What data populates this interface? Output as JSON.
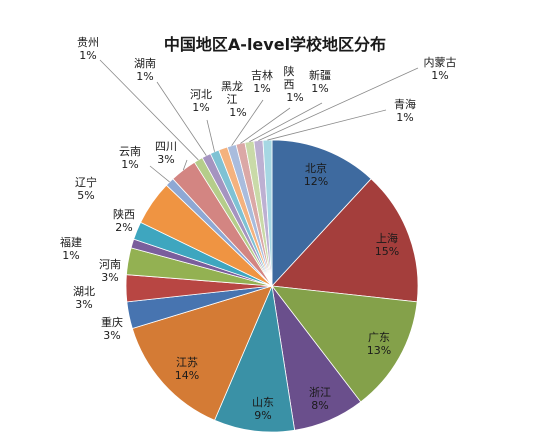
{
  "chart_data": {
    "type": "pie",
    "title": "中国地区A-level学校地区分布",
    "start_angle_deg": 0,
    "direction": "clockwise",
    "slices": [
      {
        "label": "北京",
        "pct_label": "12%",
        "value": 12,
        "color": "#3e6a9f",
        "label_pos": "inside"
      },
      {
        "label": "上海",
        "pct_label": "15%",
        "value": 15,
        "color": "#a43e3c",
        "label_pos": "inside"
      },
      {
        "label": "广东",
        "pct_label": "13%",
        "value": 13,
        "color": "#84a14a",
        "label_pos": "inside"
      },
      {
        "label": "浙江",
        "pct_label": "8%",
        "value": 8,
        "color": "#6a4f8c",
        "label_pos": "inside"
      },
      {
        "label": "山东",
        "pct_label": "9%",
        "value": 9,
        "color": "#3a91a6",
        "label_pos": "inside"
      },
      {
        "label": "江苏",
        "pct_label": "14%",
        "value": 14,
        "color": "#d47b35",
        "label_pos": "inside"
      },
      {
        "label": "重庆",
        "pct_label": "3%",
        "value": 3,
        "color": "#4774b0",
        "label_pos": "outside"
      },
      {
        "label": "湖北",
        "pct_label": "3%",
        "value": 3,
        "color": "#b84643",
        "label_pos": "outside"
      },
      {
        "label": "河南",
        "pct_label": "3%",
        "value": 3,
        "color": "#93b152",
        "label_pos": "outside"
      },
      {
        "label": "福建",
        "pct_label": "1%",
        "value": 1,
        "color": "#7a5e9c",
        "label_pos": "outside"
      },
      {
        "label": "陕西",
        "pct_label": "2%",
        "value": 2,
        "color": "#3ea6bf",
        "label_pos": "outside"
      },
      {
        "label": "辽宁",
        "pct_label": "5%",
        "value": 5,
        "color": "#ef9442",
        "label_pos": "outside"
      },
      {
        "label": "云南",
        "pct_label": "1%",
        "value": 1,
        "color": "#8ea8d4",
        "label_pos": "outside"
      },
      {
        "label": "四川",
        "pct_label": "3%",
        "value": 3,
        "color": "#d38582",
        "label_pos": "outside"
      },
      {
        "label": "贵州",
        "pct_label": "1%",
        "value": 1,
        "color": "#b5cd8a",
        "label_pos": "outside"
      },
      {
        "label": "湖南",
        "pct_label": "1%",
        "value": 1,
        "color": "#a594c0",
        "label_pos": "outside"
      },
      {
        "label": "河北",
        "pct_label": "1%",
        "value": 1,
        "color": "#7fc2d4",
        "label_pos": "outside"
      },
      {
        "label": "黑龙江",
        "pct_label": "1%",
        "value": 1,
        "color": "#f4b27e",
        "label_pos": "outside"
      },
      {
        "label": "吉林",
        "pct_label": "1%",
        "value": 1,
        "color": "#a9bcdd",
        "label_pos": "outside"
      },
      {
        "label": "陕西",
        "pct_label": "1%",
        "value": 1,
        "color": "#dba8a6",
        "label_pos": "outside"
      },
      {
        "label": "新疆",
        "pct_label": "1%",
        "value": 1,
        "color": "#c9daa8",
        "label_pos": "outside"
      },
      {
        "label": "内蒙古",
        "pct_label": "1%",
        "value": 1,
        "color": "#bdb0d2",
        "label_pos": "outside"
      },
      {
        "label": "青海",
        "pct_label": "1%",
        "value": 1,
        "color": "#a6d7e3",
        "label_pos": "outside"
      }
    ]
  }
}
